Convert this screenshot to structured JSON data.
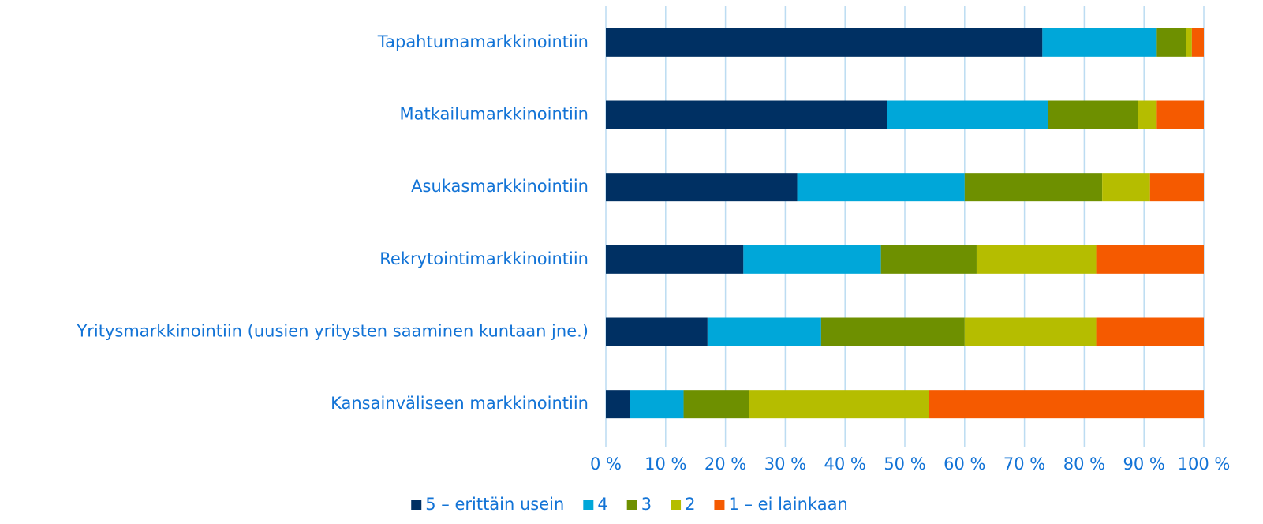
{
  "chart_data": {
    "type": "bar",
    "orientation": "horizontal",
    "stacked": true,
    "categories": [
      "Tapahtumamarkkinointiin",
      "Matkailumarkkinointiin",
      "Asukasmarkkinointiin",
      "Rekrytointimarkkinointiin",
      "Yritysmarkkinointiin (uusien yritysten saaminen kuntaan jne.)",
      "Kansainväliseen markkinointiin"
    ],
    "series": [
      {
        "name": "5 – erittäin usein",
        "color": "#003063",
        "values": [
          73,
          47,
          32,
          23,
          17,
          4
        ]
      },
      {
        "name": "4",
        "color": "#00a7d9",
        "values": [
          19,
          27,
          28,
          23,
          19,
          9
        ]
      },
      {
        "name": "3",
        "color": "#6e9000",
        "values": [
          5,
          15,
          23,
          16,
          24,
          11
        ]
      },
      {
        "name": "2",
        "color": "#b5bd00",
        "values": [
          1,
          3,
          8,
          20,
          22,
          30
        ]
      },
      {
        "name": "1 – ei lainkaan",
        "color": "#f55a00",
        "values": [
          2,
          8,
          9,
          18,
          18,
          46
        ]
      }
    ],
    "xlim": [
      0,
      100
    ],
    "xticks": [
      {
        "value": 0,
        "label": "0 %"
      },
      {
        "value": 10,
        "label": "10 %"
      },
      {
        "value": 20,
        "label": "20 %"
      },
      {
        "value": 30,
        "label": "30 %"
      },
      {
        "value": 40,
        "label": "40 %"
      },
      {
        "value": 50,
        "label": "50 %"
      },
      {
        "value": 60,
        "label": "60 %"
      },
      {
        "value": 70,
        "label": "70 %"
      },
      {
        "value": 80,
        "label": "80 %"
      },
      {
        "value": 90,
        "label": "90 %"
      },
      {
        "value": 100,
        "label": "100 %"
      }
    ],
    "grid": true,
    "legend": "bottom"
  }
}
